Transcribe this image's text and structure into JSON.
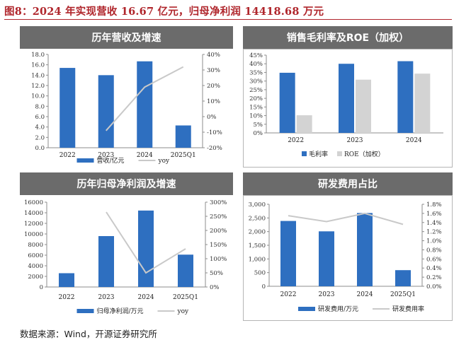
{
  "figure_title": "图8：2024 年实现营收 16.67 亿元，归母净利润 14418.68 万元",
  "source": "数据来源：Wind，开源证券研究所",
  "colors": {
    "bar": "#2e6fc0",
    "line": "#c9c9c9",
    "header_bg": "#6b6b6b",
    "title_red": "#b0262c"
  },
  "chart_data": [
    {
      "id": "revenue",
      "type": "bar",
      "title": "历年营收及增速",
      "categories": [
        "2022",
        "2023",
        "2024",
        "2025Q1"
      ],
      "series": [
        {
          "name": "营收/亿元",
          "kind": "bar",
          "axis": "left",
          "values": [
            15.4,
            14.0,
            16.67,
            4.3
          ]
        },
        {
          "name": "yoy",
          "kind": "line",
          "axis": "right",
          "values": [
            null,
            -9,
            19,
            32
          ]
        }
      ],
      "left_axis": {
        "min": 0,
        "max": 18,
        "step": 2,
        "ticks": [
          "0.0",
          "2.0",
          "4.0",
          "6.0",
          "8.0",
          "10.0",
          "12.0",
          "14.0",
          "16.0",
          "18.0"
        ]
      },
      "right_axis": {
        "min": -20,
        "max": 40,
        "step": 10,
        "ticks": [
          "-20%",
          "-10%",
          "0%",
          "10%",
          "20%",
          "30%",
          "40%"
        ]
      },
      "legend_position": "bottom-center"
    },
    {
      "id": "margin",
      "type": "bar",
      "title": "销售毛利率及ROE（加权）",
      "categories": [
        "2022",
        "2023",
        "2024"
      ],
      "series": [
        {
          "name": "毛利率",
          "kind": "bar",
          "color_key": "bar",
          "values": [
            34.8,
            40.0,
            41.5
          ]
        },
        {
          "name": "ROE（加权）",
          "kind": "bar",
          "color_key": "roe",
          "values": [
            10.2,
            30.8,
            34.3
          ]
        }
      ],
      "left_axis": {
        "min": 0,
        "max": 45,
        "step": 5,
        "ticks": [
          "0%",
          "5%",
          "10%",
          "15%",
          "20%",
          "25%",
          "30%",
          "35%",
          "40%",
          "45%"
        ]
      },
      "legend_position": "bottom-left",
      "roe_color": "#d3d3d3"
    },
    {
      "id": "profit",
      "type": "bar",
      "title": "历年归母净利润及增速",
      "categories": [
        "2022",
        "2023",
        "2024",
        "2025Q1"
      ],
      "series": [
        {
          "name": "归母净利润/万元",
          "kind": "bar",
          "axis": "left",
          "values": [
            2600,
            9600,
            14418.68,
            6100
          ]
        },
        {
          "name": "yoy",
          "kind": "line",
          "axis": "right",
          "values": [
            null,
            265,
            50,
            135
          ]
        }
      ],
      "left_axis": {
        "min": 0,
        "max": 16000,
        "step": 2000,
        "ticks": [
          "0",
          "2000",
          "4000",
          "6000",
          "8000",
          "10000",
          "12000",
          "14000",
          "16000"
        ]
      },
      "right_axis": {
        "min": 0,
        "max": 300,
        "step": 50,
        "ticks": [
          "0%",
          "50%",
          "100%",
          "150%",
          "200%",
          "250%",
          "300%"
        ]
      },
      "legend_position": "bottom-center"
    },
    {
      "id": "rnd",
      "type": "bar",
      "title": "研发费用占比",
      "categories": [
        "2022",
        "2023",
        "2024",
        "2025Q1"
      ],
      "series": [
        {
          "name": "研发费用/万元",
          "kind": "bar",
          "axis": "left",
          "values": [
            2390,
            2010,
            2680,
            590
          ]
        },
        {
          "name": "研发费用率",
          "kind": "line",
          "axis": "right",
          "values": [
            1.55,
            1.42,
            1.6,
            1.36
          ]
        }
      ],
      "left_axis": {
        "min": 0,
        "max": 3000,
        "step": 500,
        "ticks": [
          "0",
          "500",
          "1,000",
          "1,500",
          "2,000",
          "2,500",
          "3,000"
        ]
      },
      "right_axis": {
        "min": 0,
        "max": 1.8,
        "step": 0.2,
        "ticks": [
          "0.0%",
          "0.2%",
          "0.4%",
          "0.6%",
          "0.8%",
          "1.0%",
          "1.2%",
          "1.4%",
          "1.6%",
          "1.8%"
        ]
      },
      "legend_position": "bottom-center"
    }
  ]
}
